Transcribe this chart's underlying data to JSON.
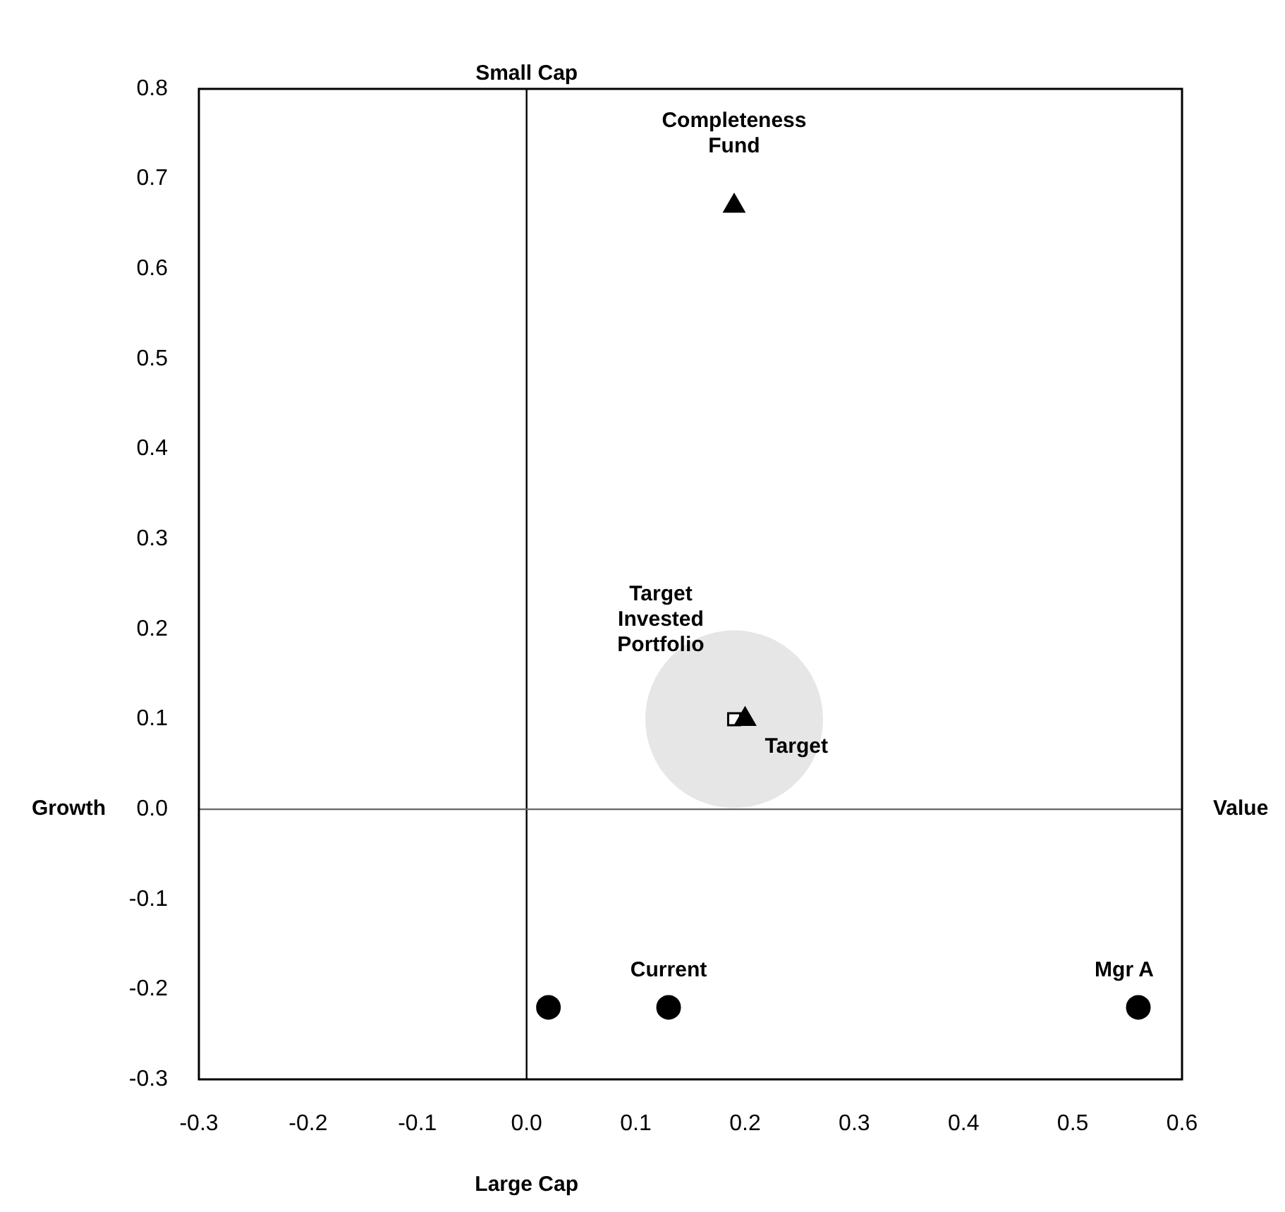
{
  "chart_data": {
    "type": "scatter",
    "xlim": [
      -0.3,
      0.6
    ],
    "ylim": [
      -0.3,
      0.8
    ],
    "xticks": [
      {
        "value": -0.3,
        "label": "-0.3"
      },
      {
        "value": -0.2,
        "label": "-0.2"
      },
      {
        "value": -0.1,
        "label": "-0.1"
      },
      {
        "value": 0,
        "label": "0.0"
      },
      {
        "value": 0.1,
        "label": "0.1"
      },
      {
        "value": 0.2,
        "label": "0.2"
      },
      {
        "value": 0.3,
        "label": "0.3"
      },
      {
        "value": 0.4,
        "label": "0.4"
      },
      {
        "value": 0.5,
        "label": "0.5"
      },
      {
        "value": 0.6,
        "label": "0.6"
      }
    ],
    "yticks": [
      {
        "value": -0.3,
        "label": "-0.3"
      },
      {
        "value": -0.2,
        "label": "-0.2"
      },
      {
        "value": -0.1,
        "label": "-0.1"
      },
      {
        "value": 0,
        "label": "0.0"
      },
      {
        "value": 0.1,
        "label": "0.1"
      },
      {
        "value": 0.2,
        "label": "0.2"
      },
      {
        "value": 0.3,
        "label": "0.3"
      },
      {
        "value": 0.4,
        "label": "0.4"
      },
      {
        "value": 0.5,
        "label": "0.5"
      },
      {
        "value": 0.6,
        "label": "0.6"
      },
      {
        "value": 0.7,
        "label": "0.7"
      },
      {
        "value": 0.8,
        "label": "0.8"
      }
    ],
    "grid": false,
    "legend": false,
    "ref_lines": [
      {
        "axis": "x",
        "value": 0,
        "color": "#000000"
      },
      {
        "axis": "y",
        "value": 0,
        "color": "#666666"
      }
    ],
    "annotations": [
      "Small Cap",
      "Large Cap",
      "Growth",
      "Value"
    ],
    "series": [
      {
        "type": "bubble",
        "color": "#e6e6e6",
        "x": [
          0.19
        ],
        "values": [
          0.1
        ],
        "sizes": [
          1
        ]
      },
      {
        "name": "Completeness Fund",
        "color": "#000000",
        "marker": "triangle",
        "x": [
          0.19
        ],
        "values": [
          0.67
        ]
      },
      {
        "name": "Target Invested Portfolio",
        "color": "#ffffff",
        "marker": "square",
        "x": [
          0.19
        ],
        "values": [
          0.1
        ]
      },
      {
        "name": "Target",
        "color": "#000000",
        "marker": "triangle",
        "x": [
          0.2
        ],
        "values": [
          0.1
        ]
      },
      {
        "name": "Current",
        "color": "#000000",
        "marker": "circle",
        "x": [
          0.13
        ],
        "values": [
          -0.22
        ]
      },
      {
        "name": "Mgr A",
        "color": "#000000",
        "marker": "circle",
        "x": [
          0.56
        ],
        "values": [
          -0.22
        ]
      },
      {
        "color": "#000000",
        "marker": "circle",
        "x": [
          0.02
        ],
        "values": [
          -0.22
        ]
      }
    ]
  }
}
